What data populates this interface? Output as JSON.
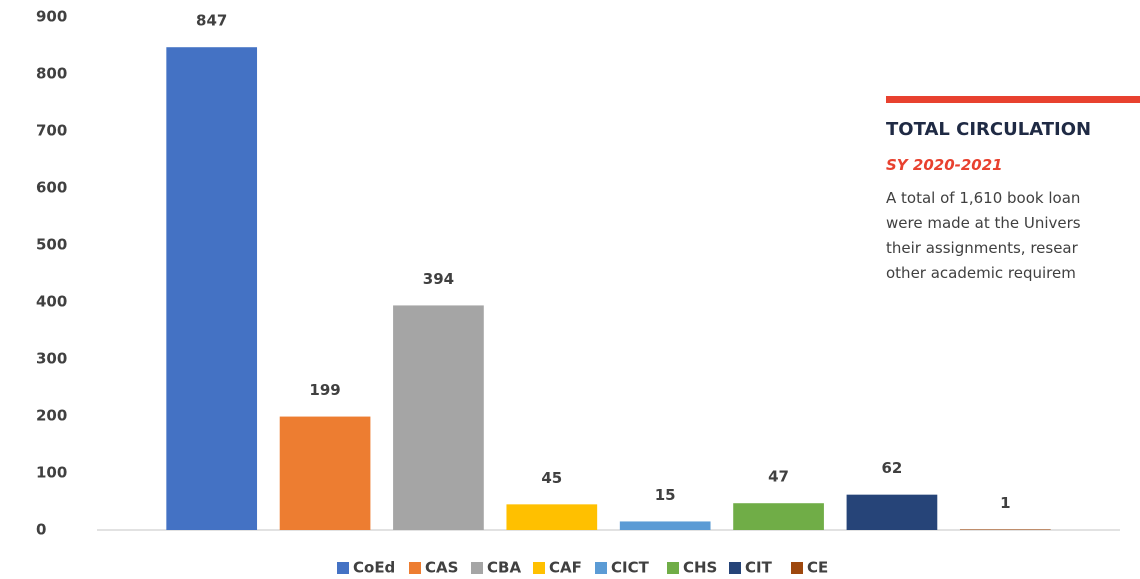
{
  "chart_data": {
    "type": "bar",
    "categories": [
      "CoEd",
      "CAS",
      "CBA",
      "CAF",
      "CICT",
      "CHS",
      "CIT",
      "CE"
    ],
    "values": [
      847,
      199,
      394,
      45,
      15,
      47,
      62,
      1
    ],
    "colors": [
      "#4472c4",
      "#ed7d31",
      "#a5a5a5",
      "#ffc000",
      "#5b9bd5",
      "#70ad47",
      "#264478",
      "#9e480e"
    ],
    "ylim": [
      0,
      900
    ],
    "yticks": [
      0,
      100,
      200,
      300,
      400,
      500,
      600,
      700,
      800,
      900
    ],
    "grid": false,
    "legend": "bottom"
  },
  "panel": {
    "title": "TOTAL CIRCULATION",
    "subtitle": "SY 2020-2021",
    "lines": [
      "A total of 1,610 book loan",
      "were made at the Univers",
      "their assignments, resear",
      "other academic requirem"
    ]
  }
}
